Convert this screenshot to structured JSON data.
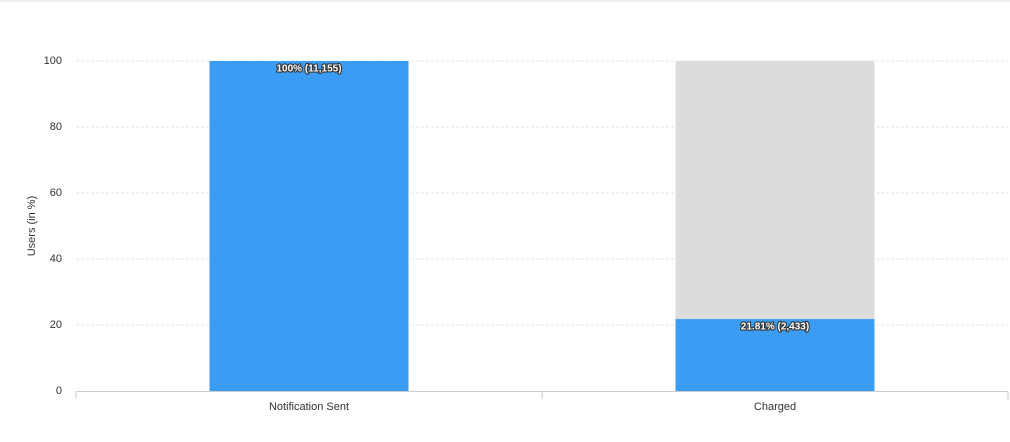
{
  "chart_data": {
    "type": "stacked_bar",
    "y_label": "Users (in %)",
    "categories": [
      "Notification Sent",
      "Charged"
    ],
    "series": [
      {
        "color": "#3a9cf2",
        "values": [
          100,
          21.81
        ],
        "value_labels": [
          "100% (11,155)",
          "21.81% (2,433)"
        ]
      },
      {
        "color": "#dcdcdc",
        "values": [
          0,
          78.19
        ]
      }
    ],
    "ylim": [
      0,
      100
    ],
    "yticks": [
      0,
      20,
      40,
      60,
      80,
      100
    ],
    "grid": true
  }
}
